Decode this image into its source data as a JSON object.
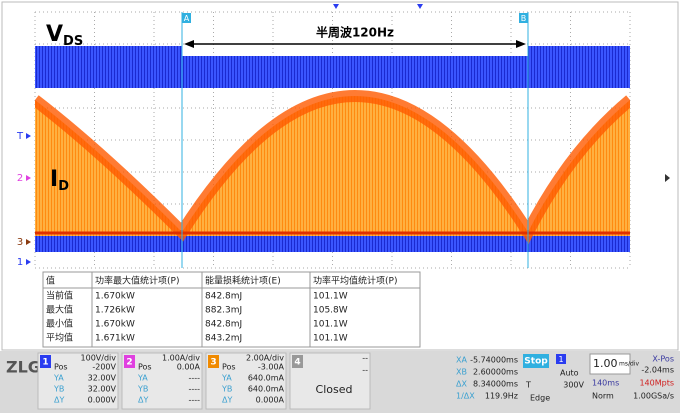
{
  "screen": {
    "vds": {
      "main": "V",
      "sub": "DS"
    },
    "id": {
      "main": "I",
      "sub": "D"
    },
    "markers": [
      "T",
      "2",
      "3",
      "1"
    ],
    "cursors": [
      "A",
      "B"
    ],
    "annotation": "半周波120Hz"
  },
  "table": {
    "headers": [
      "值",
      "功率最大值统计项(P)",
      "能量损耗统计项(E)",
      "功率平均值统计项(P)"
    ],
    "rows": [
      [
        "当前值",
        "1.670kW",
        "842.8mJ",
        "101.1W"
      ],
      [
        "最大值",
        "1.726kW",
        "882.3mJ",
        "105.8W"
      ],
      [
        "最小值",
        "1.670kW",
        "842.8mJ",
        "101.1W"
      ],
      [
        "平均值",
        "1.671kW",
        "843.2mJ",
        "101.1W"
      ]
    ]
  },
  "logo": "ZLG",
  "channels": [
    {
      "number": "1",
      "scale": "100V/div",
      "rows": [
        [
          "Pos",
          "-200V"
        ],
        [
          "YA",
          "32.00V"
        ],
        [
          "YB",
          "32.00V"
        ],
        [
          "ΔY",
          "0.000V"
        ]
      ]
    },
    {
      "number": "2",
      "scale": "1.00A/div",
      "rows": [
        [
          "Pos",
          "0.00A"
        ],
        [
          "YA",
          "----"
        ],
        [
          "YB",
          "----"
        ],
        [
          "ΔY",
          "----"
        ]
      ]
    },
    {
      "number": "3",
      "scale": "2.00A/div",
      "rows": [
        [
          "Pos",
          "-3.00A"
        ],
        [
          "YA",
          "640.0mA"
        ],
        [
          "YB",
          "640.0mA"
        ],
        [
          "ΔY",
          "0.000A"
        ]
      ]
    }
  ],
  "channel4": {
    "number": "4",
    "lines": [
      "--",
      "--",
      "Closed"
    ]
  },
  "cursor_readout": [
    [
      "XA",
      "-5.74000ms"
    ],
    [
      "XB",
      "2.60000ms"
    ],
    [
      "ΔX",
      "8.34000ms"
    ],
    [
      "1/ΔX",
      "119.9Hz"
    ]
  ],
  "trigger": {
    "state": "Stop",
    "source": "1",
    "mode": "Auto",
    "level_label": "T",
    "level": "300V",
    "type": "Edge"
  },
  "timebase": {
    "scale": "1.00",
    "unit": "ms/div",
    "xpos_label": "X-Pos",
    "xpos": "-2.04ms",
    "length": "140ms",
    "points": "140Mpts",
    "acq": "Norm",
    "rate": "1.00GSa/s"
  }
}
